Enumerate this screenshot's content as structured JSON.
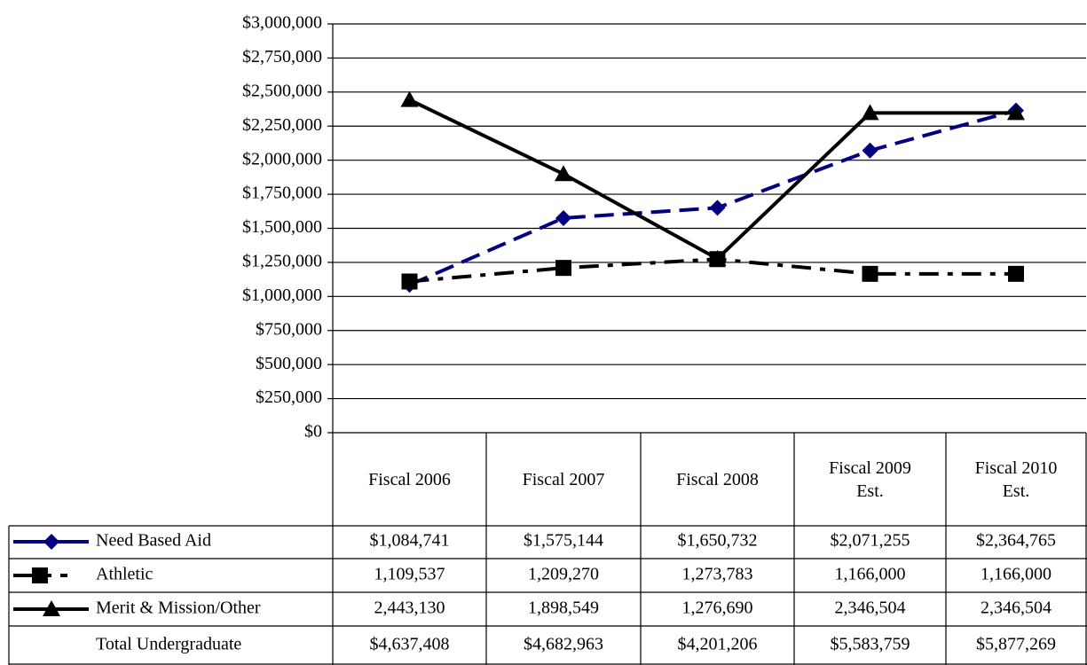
{
  "chart_data": {
    "type": "line",
    "categories": [
      "Fiscal 2006",
      "Fiscal 2007",
      "Fiscal 2008",
      "Fiscal 2009 Est.",
      "Fiscal 2010 Est."
    ],
    "ylim": [
      0,
      3000000
    ],
    "yticks": [
      {
        "value": 0,
        "label": "$0"
      },
      {
        "value": 250000,
        "label": "$250,000"
      },
      {
        "value": 500000,
        "label": "$500,000"
      },
      {
        "value": 750000,
        "label": "$750,000"
      },
      {
        "value": 1000000,
        "label": "$1,000,000"
      },
      {
        "value": 1250000,
        "label": "$1,250,000"
      },
      {
        "value": 1500000,
        "label": "$1,500,000"
      },
      {
        "value": 1750000,
        "label": "$1,750,000"
      },
      {
        "value": 2000000,
        "label": "$2,000,000"
      },
      {
        "value": 2250000,
        "label": "$2,250,000"
      },
      {
        "value": 2500000,
        "label": "$2,500,000"
      },
      {
        "value": 2750000,
        "label": "$2,750,000"
      },
      {
        "value": 3000000,
        "label": "$3,000,000"
      }
    ],
    "grid": true,
    "series": [
      {
        "name": "Need Based Aid",
        "color": "#000080",
        "marker": "diamond",
        "dash": "dashed",
        "values": [
          1084741,
          1575144,
          1650732,
          2071255,
          2364765
        ],
        "value_labels": [
          "$1,084,741",
          "$1,575,144",
          "$1,650,732",
          "$2,071,255",
          "$2,364,765"
        ]
      },
      {
        "name": "Athletic",
        "color": "#000000",
        "marker": "square",
        "dash": "dash-dot",
        "values": [
          1109537,
          1209270,
          1273783,
          1166000,
          1166000
        ],
        "value_labels": [
          "1,109,537",
          "1,209,270",
          "1,273,783",
          "1,166,000",
          "1,166,000"
        ]
      },
      {
        "name": "Merit & Mission/Other",
        "color": "#000000",
        "marker": "triangle",
        "dash": "solid",
        "values": [
          2443130,
          1898549,
          1276690,
          2346504,
          2346504
        ],
        "value_labels": [
          "2,443,130",
          "1,898,549",
          "1,276,690",
          "2,346,504",
          "2,346,504"
        ]
      }
    ],
    "totals": {
      "name": "Total Undergraduate",
      "value_labels": [
        "$4,637,408",
        "$4,682,963",
        "$4,201,206",
        "$5,583,759",
        "$5,877,269"
      ]
    }
  }
}
